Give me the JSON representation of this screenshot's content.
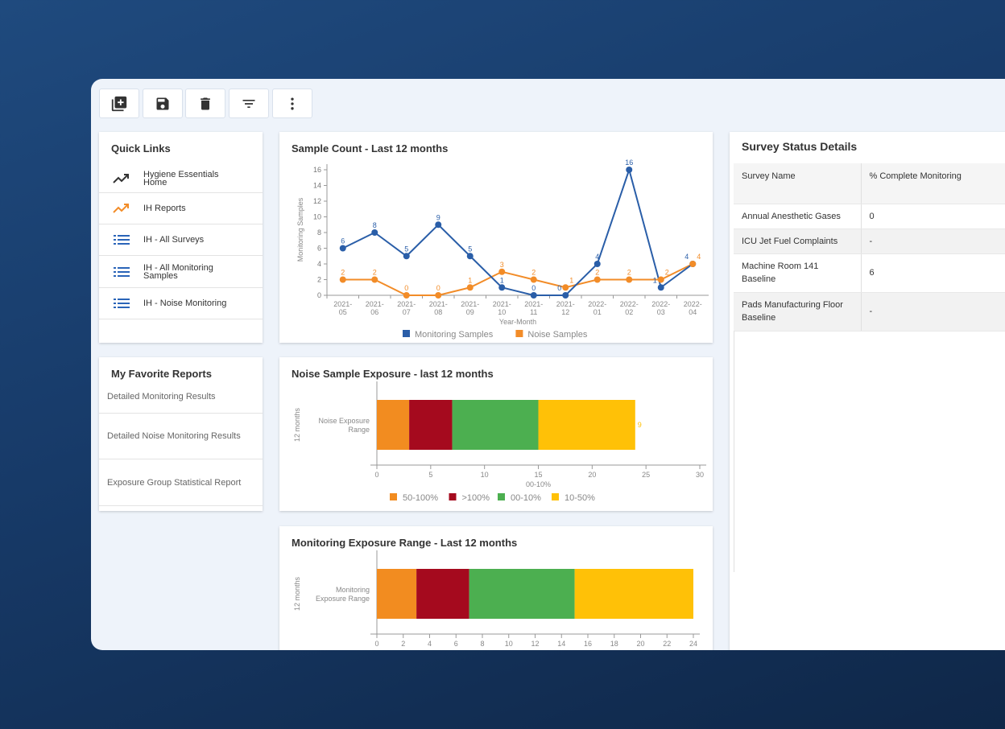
{
  "toolbar": {
    "buttons": [
      {
        "icon": "add-copy-icon",
        "label": "Add"
      },
      {
        "icon": "save-icon",
        "label": "Save"
      },
      {
        "icon": "delete-icon",
        "label": "Delete"
      },
      {
        "icon": "filter-icon",
        "label": "Filter"
      },
      {
        "icon": "more-vertical-icon",
        "label": "More"
      }
    ]
  },
  "quick_links": {
    "title": "Quick Links",
    "items": [
      {
        "label": "Hygiene Essentials Home",
        "icon": "trending-up-icon",
        "color": "#333333"
      },
      {
        "label": "IH Reports",
        "icon": "trending-up-icon",
        "color": "#f28c28"
      },
      {
        "label": "IH - All Surveys",
        "icon": "list-icon",
        "color": "#2a64b8"
      },
      {
        "label": "IH - All Monitoring Samples",
        "icon": "list-icon",
        "color": "#2a64b8"
      },
      {
        "label": "IH - Noise Monitoring",
        "icon": "list-icon",
        "color": "#2a64b8"
      }
    ]
  },
  "favorites": {
    "title": "My Favorite Reports",
    "items": [
      "Detailed Monitoring Results",
      "Detailed Noise Monitoring Results",
      "Exposure Group Statistical Report"
    ]
  },
  "survey": {
    "title": "Survey Status Details",
    "columns": [
      "Survey Name",
      "% Complete Monitoring"
    ],
    "rows": [
      [
        "Annual Anesthetic Gases",
        "0"
      ],
      [
        "ICU Jet Fuel Complaints",
        "-"
      ],
      [
        "Machine Room 141 Baseline",
        "6"
      ],
      [
        "Pads Manufacturing Floor Baseline",
        "-"
      ]
    ]
  },
  "chart_data": [
    {
      "type": "line",
      "title": "Sample Count - Last 12 months",
      "xlabel": "Year-Month",
      "ylabel": "Monitoring Samples",
      "ylim": [
        0,
        16
      ],
      "yticks": [
        0,
        2,
        4,
        6,
        8,
        10,
        12,
        14,
        16
      ],
      "categories": [
        "2021-05",
        "2021-06",
        "2021-07",
        "2021-08",
        "2021-09",
        "2021-10",
        "2021-11",
        "2021-12",
        "2022-01",
        "2022-02",
        "2022-03",
        "2022-04"
      ],
      "series": [
        {
          "name": "Monitoring Samples",
          "color": "#2a5ea8",
          "values": [
            6,
            8,
            5,
            9,
            5,
            1,
            0,
            0,
            4,
            16,
            1,
            4
          ]
        },
        {
          "name": "Noise Samples",
          "color": "#f28c28",
          "values": [
            2,
            2,
            0,
            0,
            1,
            3,
            2,
            1,
            2,
            2,
            2,
            4
          ]
        }
      ],
      "legend": "bottom",
      "data_labels": true
    },
    {
      "type": "bar",
      "orientation": "horizontal",
      "stacked": true,
      "title": "Noise Sample Exposure - last 12 months",
      "ylabel": "12 months",
      "xlabel": "00-10%",
      "categories": [
        "Noise Exposure Range"
      ],
      "xlim": [
        0,
        30
      ],
      "xticks": [
        0,
        5,
        10,
        15,
        20,
        25,
        30
      ],
      "series": [
        {
          "name": "50-100%",
          "color": "#f28c20",
          "values": [
            3
          ]
        },
        {
          "name": ">100%",
          "color": "#a50a1e",
          "values": [
            4
          ]
        },
        {
          "name": "00-10%",
          "color": "#4caf50",
          "values": [
            8
          ]
        },
        {
          "name": "10-50%",
          "color": "#ffc107",
          "values": [
            9
          ]
        }
      ],
      "legend": "bottom",
      "data_labels": true
    },
    {
      "type": "bar",
      "orientation": "horizontal",
      "stacked": true,
      "title": "Monitoring Exposure Range - Last 12 months",
      "ylabel": "12 months",
      "categories": [
        "Monitoring Exposure Range"
      ],
      "xlim": [
        0,
        24
      ],
      "xticks": [
        0,
        2,
        4,
        6,
        8,
        10,
        12,
        14,
        16,
        18,
        20,
        22,
        24
      ],
      "series": [
        {
          "color": "#f28c20",
          "values": [
            3
          ]
        },
        {
          "color": "#a50a1e",
          "values": [
            4
          ]
        },
        {
          "color": "#4caf50",
          "values": [
            8
          ]
        },
        {
          "color": "#ffc107",
          "values": [
            9
          ]
        }
      ]
    }
  ]
}
